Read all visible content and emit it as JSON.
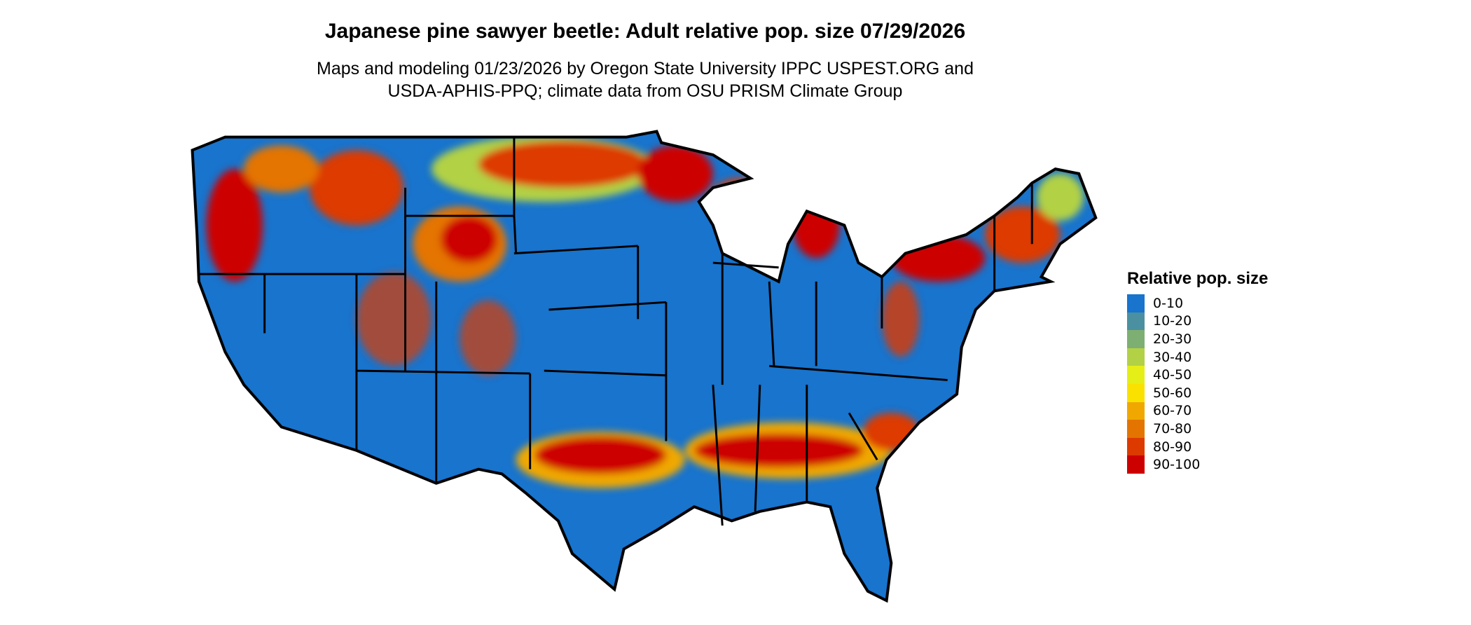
{
  "title": "Japanese pine sawyer beetle: Adult relative pop. size 07/29/2026",
  "subtitle_lines": [
    "Maps and modeling 01/23/2026 by Oregon State University IPPC USPEST.ORG and",
    "USDA-APHIS-PPQ; climate data from OSU PRISM Climate Group"
  ],
  "map": {
    "region": "contiguous United States",
    "state_borders": true
  },
  "legend": {
    "title": "Relative pop. size",
    "items": [
      {
        "label": "0-10",
        "color": "#1874cd"
      },
      {
        "label": "10-20",
        "color": "#4a90a0"
      },
      {
        "label": "20-30",
        "color": "#7eaf72"
      },
      {
        "label": "30-40",
        "color": "#b2d145"
      },
      {
        "label": "40-50",
        "color": "#e5ee17"
      },
      {
        "label": "50-60",
        "color": "#fae100"
      },
      {
        "label": "60-70",
        "color": "#f0a800"
      },
      {
        "label": "70-80",
        "color": "#e47400"
      },
      {
        "label": "80-90",
        "color": "#dd3a00"
      },
      {
        "label": "90-100",
        "color": "#cd0000"
      }
    ]
  }
}
